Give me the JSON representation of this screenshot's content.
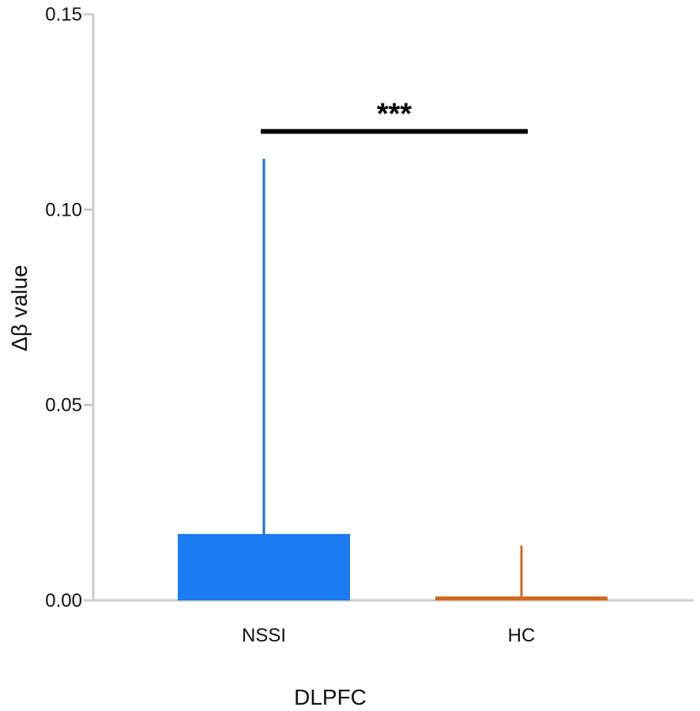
{
  "chart_data": {
    "type": "bar",
    "categories": [
      "NSSI",
      "HC"
    ],
    "series": [
      {
        "values": [
          0.017,
          0.001
        ],
        "error_upper": [
          0.113,
          0.014
        ],
        "colors": [
          "#1a7cf0",
          "#d2691e"
        ],
        "error_colors": [
          "#1f6fc9",
          "#d2691e"
        ]
      }
    ],
    "ylim": [
      0,
      0.15
    ],
    "yticks": [
      "0.00",
      "0.05",
      "0.10",
      "0.15"
    ],
    "ytick_values": [
      0,
      0.05,
      0.1,
      0.15
    ],
    "xlabel": "DLPFC",
    "ylabel": "Δβ value",
    "significance": {
      "label": "***",
      "between": [
        "NSSI",
        "HC"
      ],
      "y": 0.12
    },
    "grid": false,
    "legend": "none",
    "axis_color": "#cccccc"
  }
}
